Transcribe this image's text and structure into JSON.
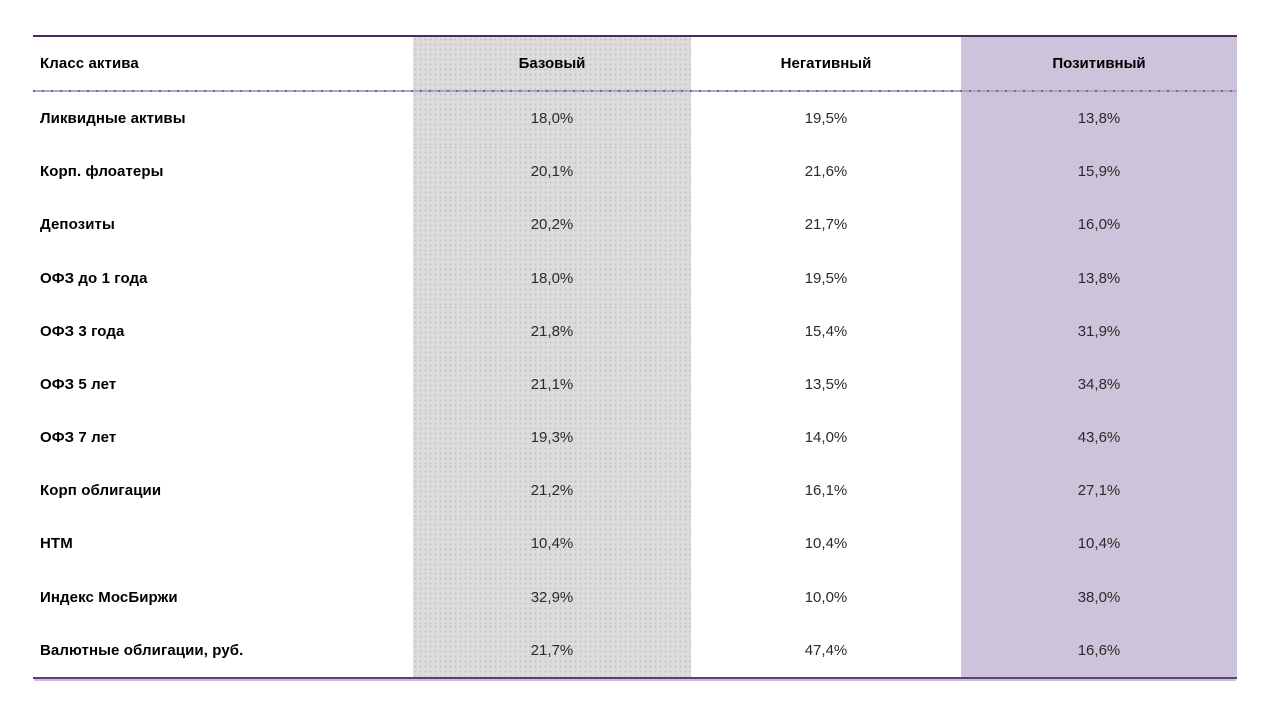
{
  "colors": {
    "top_border": "#4a2a5e",
    "header_divider": "#b0a2c8",
    "header_divider_dot": "#7d649c",
    "bottom_border": "#5e3f7d",
    "base_col_bg": "#dcdcdc",
    "positive_col_bg": "#cdc3da"
  },
  "table": {
    "columns": [
      {
        "label": "Класс актива"
      },
      {
        "label": "Базовый"
      },
      {
        "label": "Негативный"
      },
      {
        "label": "Позитивный"
      }
    ],
    "rows": [
      {
        "label": "Ликвидные активы",
        "base": "18,0%",
        "negative": "19,5%",
        "positive": "13,8%"
      },
      {
        "label": "Корп. флоатеры",
        "base": "20,1%",
        "negative": "21,6%",
        "positive": "15,9%"
      },
      {
        "label": "Депозиты",
        "base": "20,2%",
        "negative": "21,7%",
        "positive": "16,0%"
      },
      {
        "label": "ОФЗ до 1 года",
        "base": "18,0%",
        "negative": "19,5%",
        "positive": "13,8%"
      },
      {
        "label": "ОФЗ 3 года",
        "base": "21,8%",
        "negative": "15,4%",
        "positive": "31,9%"
      },
      {
        "label": "ОФЗ 5 лет",
        "base": "21,1%",
        "negative": "13,5%",
        "positive": "34,8%"
      },
      {
        "label": "ОФЗ 7 лет",
        "base": "19,3%",
        "negative": "14,0%",
        "positive": "43,6%"
      },
      {
        "label": "Корп облигации",
        "base": "21,2%",
        "negative": "16,1%",
        "positive": "27,1%"
      },
      {
        "label": "HTM",
        "base": "10,4%",
        "negative": "10,4%",
        "positive": "10,4%"
      },
      {
        "label": "Индекс МосБиржи",
        "base": "32,9%",
        "negative": "10,0%",
        "positive": "38,0%"
      },
      {
        "label": "Валютные облигации, руб.",
        "base": "21,7%",
        "negative": "47,4%",
        "positive": "16,6%"
      }
    ]
  }
}
